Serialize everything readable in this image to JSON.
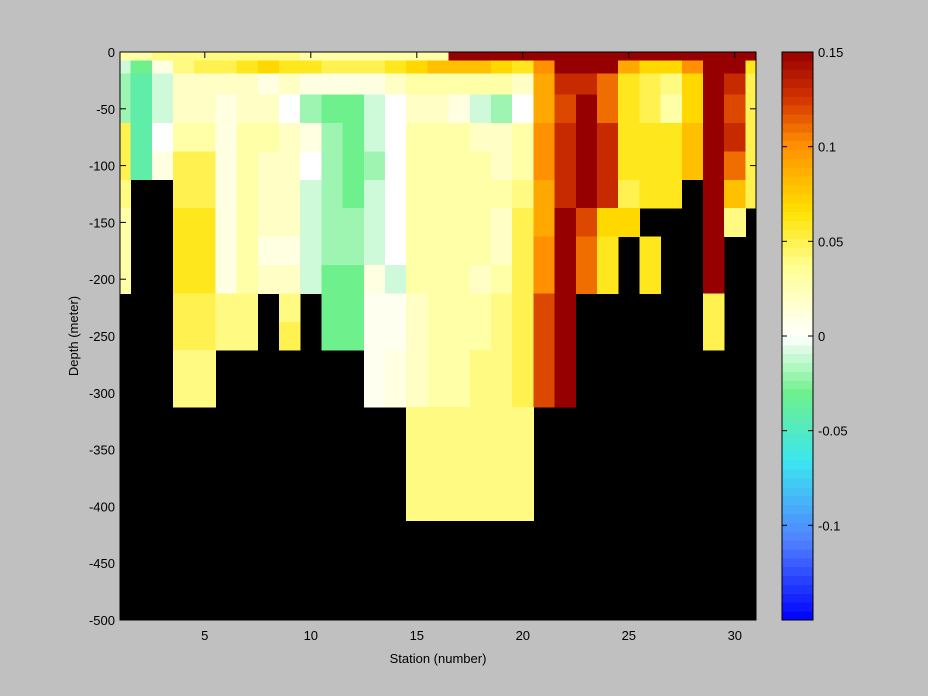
{
  "chart_data": {
    "type": "heatmap",
    "xlabel": "Station (number)",
    "ylabel": "Depth (meter)",
    "xlim": [
      1,
      31
    ],
    "ylim": [
      -500,
      0
    ],
    "xticks": [
      5,
      10,
      15,
      20,
      25,
      30
    ],
    "yticks": [
      0,
      -50,
      -100,
      -150,
      -200,
      -250,
      -300,
      -350,
      -400,
      -450,
      -500
    ],
    "stations": [
      1,
      2,
      3,
      4,
      5,
      6,
      7,
      8,
      9,
      10,
      11,
      12,
      13,
      14,
      15,
      16,
      17,
      18,
      19,
      20,
      21,
      22,
      23,
      24,
      25,
      26,
      27,
      28,
      29,
      30,
      31
    ],
    "depths": [
      -2.5,
      -12.5,
      -25,
      -50,
      -75,
      -100,
      -125,
      -150,
      -175,
      -200,
      -225,
      -250,
      -275,
      -300,
      -325,
      -350,
      -375,
      -400
    ],
    "values": [
      [
        0.03,
        0.03,
        0.04,
        0.04,
        0.04,
        0.04,
        0.04,
        0.04,
        0.04,
        0.03,
        0.03,
        0.03,
        0.03,
        0.03,
        0.03,
        0.03,
        0.15,
        0.15,
        0.15,
        0.15,
        0.15,
        0.15,
        0.15,
        0.15,
        0.15,
        0.15,
        0.15,
        0.15,
        0.15,
        0.15,
        0.15
      ],
      [
        -0.01,
        -0.03,
        0.01,
        0.04,
        0.05,
        0.05,
        0.06,
        0.07,
        0.06,
        0.06,
        0.05,
        0.05,
        0.05,
        0.06,
        0.07,
        0.08,
        0.08,
        0.08,
        0.07,
        0.06,
        0.1,
        0.15,
        0.15,
        0.15,
        0.09,
        0.07,
        0.07,
        0.1,
        0.15,
        0.15,
        0.06
      ],
      [
        -0.02,
        -0.04,
        -0.01,
        0.02,
        0.02,
        0.02,
        0.02,
        0.01,
        0.02,
        0.01,
        0.01,
        0.01,
        0.01,
        0.02,
        0.03,
        0.03,
        0.03,
        0.03,
        0.03,
        0.02,
        0.09,
        0.13,
        0.13,
        0.11,
        0.06,
        0.05,
        0.04,
        0.07,
        0.15,
        0.13,
        0.05
      ],
      [
        -0.02,
        -0.04,
        -0.01,
        0.02,
        0.02,
        0.01,
        0.02,
        0.02,
        0.0,
        -0.02,
        -0.03,
        -0.03,
        -0.01,
        0.0,
        0.02,
        0.02,
        0.01,
        -0.01,
        -0.02,
        0.0,
        0.09,
        0.12,
        0.15,
        0.11,
        0.06,
        0.05,
        0.03,
        0.07,
        0.15,
        0.12,
        0.05
      ],
      [
        0.05,
        -0.04,
        0.0,
        0.03,
        0.03,
        0.01,
        0.03,
        0.03,
        0.02,
        0.01,
        -0.02,
        -0.03,
        -0.01,
        0.0,
        0.03,
        0.03,
        0.03,
        0.02,
        0.02,
        0.03,
        0.1,
        0.13,
        0.15,
        0.13,
        0.06,
        0.06,
        0.06,
        0.08,
        0.15,
        0.13,
        0.05
      ],
      [
        0.05,
        -0.04,
        0.01,
        0.05,
        0.05,
        0.01,
        0.03,
        0.02,
        0.02,
        0.0,
        -0.02,
        -0.03,
        -0.02,
        0.0,
        0.03,
        0.03,
        0.03,
        0.03,
        0.02,
        0.03,
        0.1,
        0.13,
        0.15,
        0.13,
        0.06,
        0.06,
        0.06,
        0.08,
        0.15,
        0.11,
        0.05
      ],
      [
        0.04,
        null,
        null,
        0.05,
        0.05,
        0.01,
        0.03,
        0.02,
        0.02,
        -0.01,
        -0.02,
        -0.03,
        -0.01,
        0.0,
        0.03,
        0.03,
        0.03,
        0.03,
        0.03,
        0.04,
        0.09,
        0.13,
        0.15,
        0.13,
        0.05,
        0.06,
        0.06,
        null,
        0.15,
        0.08,
        0.05
      ],
      [
        0.03,
        null,
        null,
        0.06,
        0.06,
        0.01,
        0.03,
        0.02,
        0.02,
        -0.01,
        -0.02,
        -0.02,
        -0.01,
        0.0,
        0.03,
        0.03,
        0.03,
        0.03,
        0.02,
        0.05,
        0.09,
        0.15,
        0.12,
        0.07,
        0.07,
        null,
        null,
        null,
        0.15,
        0.04,
        null
      ],
      [
        0.03,
        null,
        null,
        0.06,
        0.06,
        0.01,
        0.03,
        0.01,
        0.01,
        -0.01,
        -0.02,
        -0.02,
        -0.01,
        0.0,
        0.03,
        0.03,
        0.03,
        0.03,
        0.02,
        0.05,
        0.1,
        0.15,
        0.11,
        0.06,
        null,
        0.06,
        null,
        null,
        0.15,
        null,
        null
      ],
      [
        0.03,
        null,
        null,
        0.06,
        0.06,
        0.01,
        0.03,
        0.02,
        0.02,
        -0.01,
        -0.03,
        -0.03,
        0.01,
        -0.01,
        0.03,
        0.03,
        0.03,
        0.02,
        0.03,
        0.05,
        0.1,
        0.15,
        0.11,
        0.06,
        null,
        0.06,
        null,
        null,
        0.15,
        null,
        null
      ],
      [
        null,
        null,
        null,
        0.05,
        0.05,
        0.04,
        0.04,
        null,
        0.04,
        null,
        -0.03,
        -0.03,
        0.005,
        0.005,
        0.02,
        0.03,
        0.03,
        0.03,
        0.04,
        0.05,
        0.12,
        0.15,
        null,
        null,
        null,
        null,
        null,
        null,
        0.05,
        null,
        null
      ],
      [
        null,
        null,
        null,
        0.05,
        0.05,
        0.04,
        0.04,
        null,
        0.05,
        null,
        -0.03,
        -0.03,
        0.005,
        0.005,
        0.02,
        0.03,
        0.03,
        0.03,
        0.04,
        0.05,
        0.12,
        0.15,
        null,
        null,
        null,
        null,
        null,
        null,
        0.05,
        null,
        null
      ],
      [
        null,
        null,
        null,
        0.04,
        0.04,
        null,
        null,
        null,
        null,
        null,
        null,
        null,
        0.005,
        0.01,
        0.02,
        0.03,
        0.03,
        0.04,
        0.04,
        0.05,
        0.12,
        0.15,
        null,
        null,
        null,
        null,
        null,
        null,
        null,
        null,
        null
      ],
      [
        null,
        null,
        null,
        0.04,
        0.04,
        null,
        null,
        null,
        null,
        null,
        null,
        null,
        0.005,
        0.01,
        0.02,
        0.03,
        0.03,
        0.04,
        0.04,
        0.05,
        0.12,
        0.15,
        null,
        null,
        null,
        null,
        null,
        null,
        null,
        null,
        null
      ],
      [
        null,
        null,
        null,
        null,
        null,
        null,
        null,
        null,
        null,
        null,
        null,
        null,
        null,
        null,
        0.04,
        0.04,
        0.04,
        0.04,
        0.04,
        0.04,
        null,
        null,
        null,
        null,
        null,
        null,
        null,
        null,
        null,
        null,
        null
      ],
      [
        null,
        null,
        null,
        null,
        null,
        null,
        null,
        null,
        null,
        null,
        null,
        null,
        null,
        null,
        0.04,
        0.04,
        0.04,
        0.04,
        0.04,
        0.04,
        null,
        null,
        null,
        null,
        null,
        null,
        null,
        null,
        null,
        null,
        null
      ],
      [
        null,
        null,
        null,
        null,
        null,
        null,
        null,
        null,
        null,
        null,
        null,
        null,
        null,
        null,
        0.04,
        0.04,
        0.04,
        0.04,
        0.04,
        0.04,
        null,
        null,
        null,
        null,
        null,
        null,
        null,
        null,
        null,
        null,
        null
      ],
      [
        null,
        null,
        null,
        null,
        null,
        null,
        null,
        null,
        null,
        null,
        null,
        null,
        null,
        null,
        0.04,
        0.04,
        0.04,
        0.04,
        0.04,
        0.04,
        null,
        null,
        null,
        null,
        null,
        null,
        null,
        null,
        null,
        null,
        null
      ]
    ],
    "missing_color": "#000000",
    "background_color": "#c0c0c0",
    "colorbar": {
      "clim": [
        -0.15,
        0.15
      ],
      "ticks": [
        0.15,
        0.1,
        0.05,
        0,
        -0.05,
        -0.1
      ],
      "tick_labels": [
        "0.15",
        "0.1",
        "0.05",
        "0",
        "-0.05",
        "-0.1"
      ],
      "levels": 64
    }
  }
}
